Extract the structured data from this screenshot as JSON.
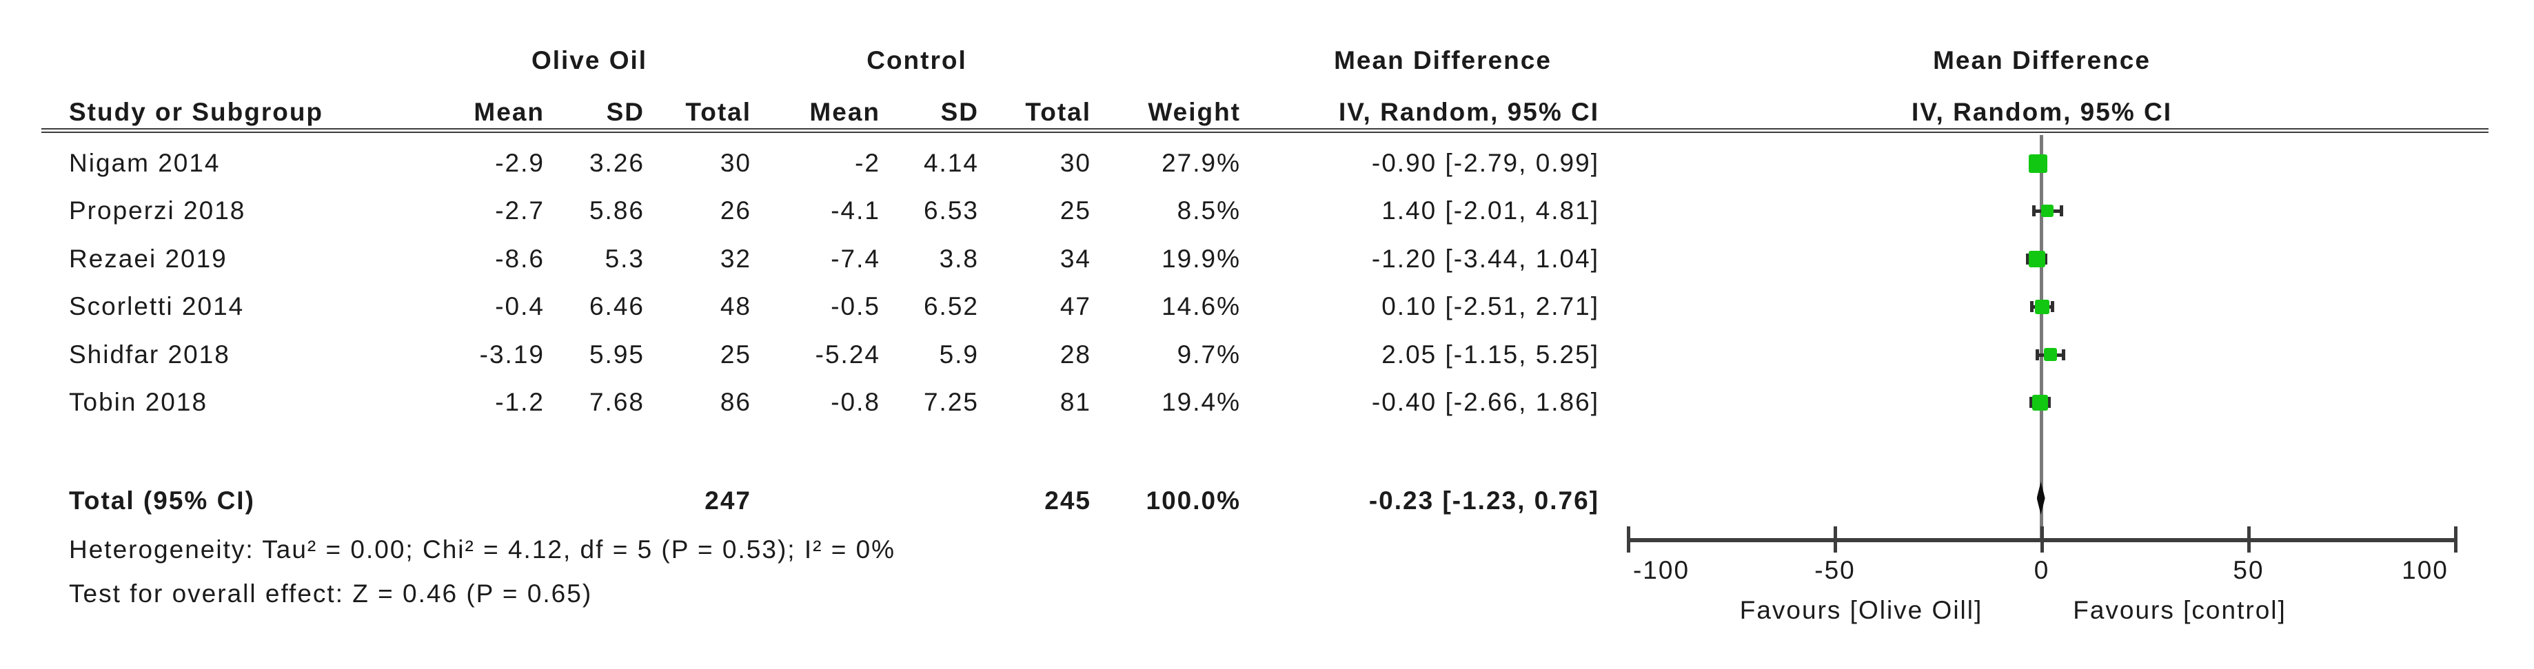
{
  "colors": {
    "marker_green": "#12c712",
    "zero_line_gray": "#7a7a7a",
    "axis_dark": "#3d3d3d",
    "text_black": "#1b1b1b"
  },
  "table": {
    "group_headers": {
      "olive_oil": "Olive Oil",
      "control": "Control",
      "mean_difference": "Mean Difference"
    },
    "col_headers": {
      "study": "Study or Subgroup",
      "mean": "Mean",
      "sd": "SD",
      "total": "Total",
      "weight": "Weight",
      "iv_ci": "IV, Random, 95% CI"
    },
    "plot_headers": {
      "line1": "Mean Difference",
      "line2": "IV, Random, 95% CI"
    }
  },
  "chart_data": {
    "type": "forest",
    "effect_measure": "Mean Difference, IV, Random, 95% CI",
    "xlim": [
      -100,
      100
    ],
    "x_ticks": [
      -100,
      -50,
      0,
      50,
      100
    ],
    "x_tick_labels": [
      "-100",
      "-50",
      "0",
      "50",
      "100"
    ],
    "favours_left": "Favours [Olive Oill]",
    "favours_right": "Favours [control]",
    "studies": [
      {
        "name": "Nigam 2014",
        "exp_mean": "-2.9",
        "exp_sd": "3.26",
        "exp_total": "30",
        "ctl_mean": "-2",
        "ctl_sd": "4.14",
        "ctl_total": "30",
        "weight": "27.9%",
        "weight_val": 27.9,
        "ci_label": "-0.90 [-2.79, 0.99]",
        "md": -0.9,
        "ci_low": -2.79,
        "ci_high": 0.99
      },
      {
        "name": "Properzi 2018",
        "exp_mean": "-2.7",
        "exp_sd": "5.86",
        "exp_total": "26",
        "ctl_mean": "-4.1",
        "ctl_sd": "6.53",
        "ctl_total": "25",
        "weight": "8.5%",
        "weight_val": 8.5,
        "ci_label": "1.40 [-2.01, 4.81]",
        "md": 1.4,
        "ci_low": -2.01,
        "ci_high": 4.81
      },
      {
        "name": "Rezaei 2019",
        "exp_mean": "-8.6",
        "exp_sd": "5.3",
        "exp_total": "32",
        "ctl_mean": "-7.4",
        "ctl_sd": "3.8",
        "ctl_total": "34",
        "weight": "19.9%",
        "weight_val": 19.9,
        "ci_label": "-1.20 [-3.44, 1.04]",
        "md": -1.2,
        "ci_low": -3.44,
        "ci_high": 1.04
      },
      {
        "name": "Scorletti 2014",
        "exp_mean": "-0.4",
        "exp_sd": "6.46",
        "exp_total": "48",
        "ctl_mean": "-0.5",
        "ctl_sd": "6.52",
        "ctl_total": "47",
        "weight": "14.6%",
        "weight_val": 14.6,
        "ci_label": "0.10 [-2.51, 2.71]",
        "md": 0.1,
        "ci_low": -2.51,
        "ci_high": 2.71
      },
      {
        "name": "Shidfar 2018",
        "exp_mean": "-3.19",
        "exp_sd": "5.95",
        "exp_total": "25",
        "ctl_mean": "-5.24",
        "ctl_sd": "5.9",
        "ctl_total": "28",
        "weight": "9.7%",
        "weight_val": 9.7,
        "ci_label": "2.05 [-1.15, 5.25]",
        "md": 2.05,
        "ci_low": -1.15,
        "ci_high": 5.25
      },
      {
        "name": "Tobin 2018",
        "exp_mean": "-1.2",
        "exp_sd": "7.68",
        "exp_total": "86",
        "ctl_mean": "-0.8",
        "ctl_sd": "7.25",
        "ctl_total": "81",
        "weight": "19.4%",
        "weight_val": 19.4,
        "ci_label": "-0.40 [-2.66, 1.86]",
        "md": -0.4,
        "ci_low": -2.66,
        "ci_high": 1.86
      }
    ],
    "total": {
      "label": "Total (95% CI)",
      "exp_total": "247",
      "ctl_total": "245",
      "weight": "100.0%",
      "ci_label": "-0.23 [-1.23, 0.76]",
      "md": -0.23,
      "ci_low": -1.23,
      "ci_high": 0.76
    },
    "heterogeneity": "Heterogeneity: Tau² = 0.00; Chi² = 4.12, df = 5 (P = 0.53); I² = 0%",
    "overall_effect": "Test for overall effect: Z = 0.46 (P = 0.65)"
  }
}
